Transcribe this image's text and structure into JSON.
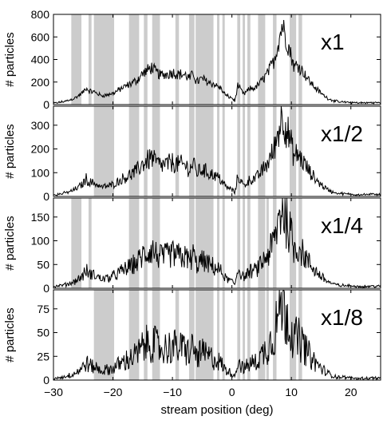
{
  "chart_data": {
    "type": "line",
    "xlabel": "stream position (deg)",
    "xlim": [
      -30,
      25
    ],
    "xticks": [
      -30,
      -20,
      -10,
      0,
      10,
      20
    ],
    "gap_bands": [
      [
        -27,
        -25.3
      ],
      [
        -24.1,
        -23.6
      ],
      [
        -23.2,
        -19.8
      ],
      [
        -17.3,
        -15.6
      ],
      [
        -14.8,
        -14.2
      ],
      [
        -13.4,
        -12.1
      ],
      [
        -9.5,
        -8.9
      ],
      [
        -7.2,
        -6.3
      ],
      [
        -6.1,
        -3.1
      ],
      [
        -2.5,
        -2.1
      ],
      [
        -1.6,
        -1.2
      ],
      [
        0.9,
        1.4
      ],
      [
        1.8,
        2.2
      ],
      [
        2.6,
        3.1
      ],
      [
        4.4,
        5.6
      ],
      [
        5.8,
        6.2
      ],
      [
        6.9,
        7.5
      ],
      [
        9.7,
        10.8
      ],
      [
        11.2,
        11.8
      ]
    ],
    "panels": [
      {
        "label": "x1",
        "ylabel": "# particles",
        "ylim": [
          0,
          800
        ],
        "yticks": [
          0,
          200,
          400,
          600,
          800
        ],
        "bands": [
          0,
          1,
          2,
          3,
          4,
          5,
          6,
          7,
          8,
          9,
          10,
          11,
          12,
          13,
          14,
          16,
          17,
          18
        ],
        "peak": 715,
        "scale": 1
      },
      {
        "label": "x1/2",
        "ylabel": "# particles",
        "ylim": [
          0,
          380
        ],
        "yticks": [
          0,
          100,
          200,
          300
        ],
        "bands": [
          2,
          3,
          4,
          5,
          6,
          7,
          8,
          9,
          10,
          11,
          12,
          13,
          14,
          16,
          17,
          18
        ],
        "peak": 358,
        "scale": 0.5
      },
      {
        "label": "x1/4",
        "ylabel": "# particles",
        "ylim": [
          0,
          190
        ],
        "yticks": [
          0,
          50,
          100,
          150
        ],
        "bands": [
          0,
          1,
          3,
          4,
          5,
          7,
          8,
          9,
          10,
          11,
          12,
          13,
          14,
          15,
          16,
          17,
          18
        ],
        "peak": 180,
        "scale": 0.25
      },
      {
        "label": "x1/8",
        "ylabel": "# particles",
        "ylim": [
          0,
          95
        ],
        "yticks": [
          0,
          25,
          50,
          75
        ],
        "bands": [
          2,
          3,
          4,
          5,
          6,
          7,
          8,
          9,
          10,
          11,
          12,
          13,
          14,
          15,
          16,
          17,
          18
        ],
        "peak": 93,
        "scale": 0.125
      }
    ],
    "profile": [
      [
        -30,
        10
      ],
      [
        -29,
        20
      ],
      [
        -28,
        30
      ],
      [
        -27,
        45
      ],
      [
        -26,
        70
      ],
      [
        -25,
        110
      ],
      [
        -24.5,
        150
      ],
      [
        -24,
        120
      ],
      [
        -23,
        110
      ],
      [
        -22,
        80
      ],
      [
        -21,
        85
      ],
      [
        -20,
        100
      ],
      [
        -19,
        130
      ],
      [
        -18,
        160
      ],
      [
        -17,
        185
      ],
      [
        -16,
        215
      ],
      [
        -15,
        275
      ],
      [
        -14,
        310
      ],
      [
        -13.5,
        330
      ],
      [
        -13,
        300
      ],
      [
        -12,
        260
      ],
      [
        -11,
        270
      ],
      [
        -10,
        285
      ],
      [
        -9,
        270
      ],
      [
        -8,
        265
      ],
      [
        -7,
        230
      ],
      [
        -6.5,
        290
      ],
      [
        -6,
        200
      ],
      [
        -5,
        230
      ],
      [
        -4,
        200
      ],
      [
        -3,
        180
      ],
      [
        -2,
        150
      ],
      [
        -1,
        80
      ],
      [
        0,
        60
      ],
      [
        0.5,
        30
      ],
      [
        1,
        170
      ],
      [
        2,
        90
      ],
      [
        3,
        140
      ],
      [
        4,
        150
      ],
      [
        5,
        210
      ],
      [
        6,
        280
      ],
      [
        7,
        380
      ],
      [
        7.5,
        480
      ],
      [
        8,
        600
      ],
      [
        8.5,
        715
      ],
      [
        9,
        600
      ],
      [
        9.5,
        520
      ],
      [
        10,
        430
      ],
      [
        10.5,
        330
      ],
      [
        11,
        360
      ],
      [
        12,
        290
      ],
      [
        13,
        210
      ],
      [
        14,
        150
      ],
      [
        15,
        100
      ],
      [
        16,
        60
      ],
      [
        17,
        35
      ],
      [
        18,
        25
      ],
      [
        20,
        18
      ],
      [
        22,
        15
      ],
      [
        24,
        18
      ],
      [
        25,
        16
      ]
    ]
  }
}
